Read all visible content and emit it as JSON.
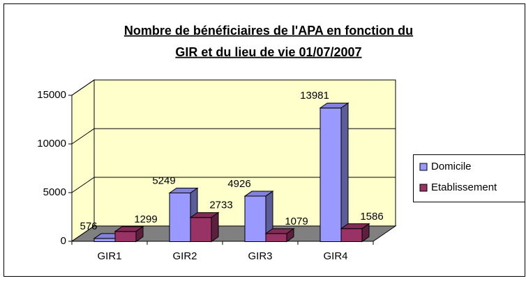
{
  "chart_data": {
    "type": "bar3d",
    "title": "Nombre de bénéficiaires de l'APA en fonction du",
    "subtitle": "GIR et du lieu de vie 01/07/2007",
    "categories": [
      "GIR1",
      "GIR2",
      "GIR3",
      "GIR4"
    ],
    "series": [
      {
        "name": "Domicile",
        "color": "#9999ff",
        "values": [
          576,
          5249,
          4926,
          13981
        ]
      },
      {
        "name": "Etablissement",
        "color": "#993366",
        "values": [
          1299,
          2733,
          1079,
          1586
        ]
      }
    ],
    "ylim": [
      0,
      15000
    ],
    "yticks": [
      0,
      5000,
      10000,
      15000
    ],
    "grid": true,
    "legend": "right"
  }
}
